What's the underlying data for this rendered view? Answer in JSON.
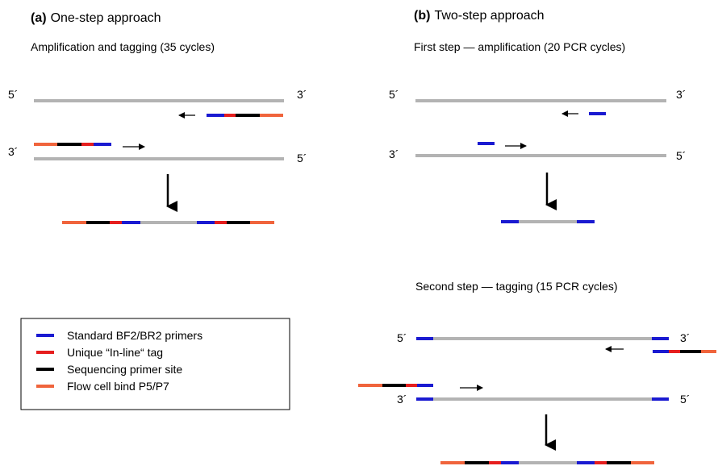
{
  "panel_a": {
    "letter": "(a)",
    "title": "One-step approach",
    "subtitle": "Amplification and tagging (35 cycles)"
  },
  "panel_b": {
    "letter": "(b)",
    "title": "Two-step approach",
    "step1": "First step — amplification (20 PCR cycles)",
    "step2": "Second step — tagging (15 PCR cycles)"
  },
  "end_labels": {
    "five": "5´",
    "three": "3´"
  },
  "colors": {
    "template": "#b3b3b3",
    "primer": "#1a1ad1",
    "tag": "#e61e1e",
    "sequencing": "#000000",
    "flowcell": "#f0643c"
  },
  "legend": {
    "items": [
      {
        "label": "Standard BF2/BR2 primers",
        "color": "#1a1ad1"
      },
      {
        "label": "Unique “In-line“ tag",
        "color": "#e61e1e"
      },
      {
        "label": "Sequencing primer site",
        "color": "#000000"
      },
      {
        "label": "Flow cell bind P5/P7",
        "color": "#f0643c"
      }
    ]
  }
}
